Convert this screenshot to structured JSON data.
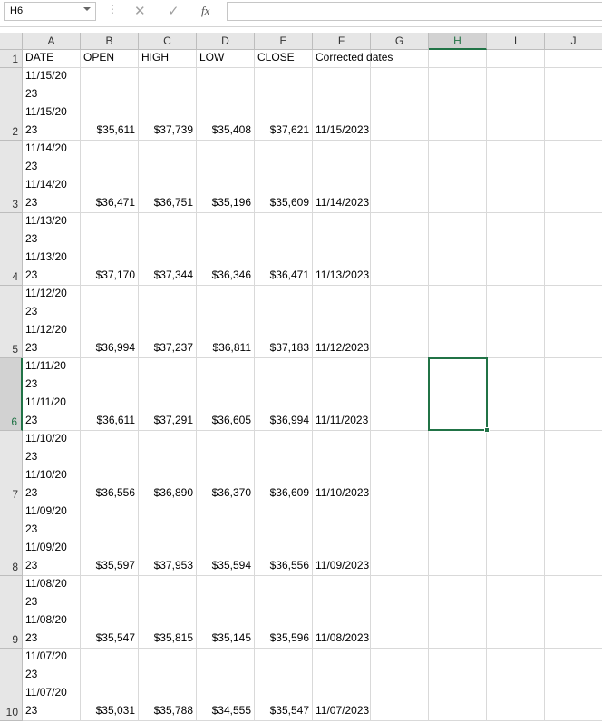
{
  "name_box": "H6",
  "formula_icon": "fx",
  "columns": [
    "A",
    "B",
    "C",
    "D",
    "E",
    "F",
    "G",
    "H",
    "I",
    "J"
  ],
  "rows": [
    {
      "number": "1",
      "cells": [
        "DATE",
        "OPEN",
        "HIGH",
        "LOW",
        "CLOSE",
        "Corrected dates"
      ]
    },
    {
      "number": "2",
      "cells": [
        [
          "11/15/20",
          "23",
          "11/15/20",
          "23"
        ],
        "$35,611",
        "$37,739",
        "$35,408",
        "$37,621",
        "11/15/2023"
      ]
    },
    {
      "number": "3",
      "cells": [
        [
          "11/14/20",
          "23",
          "11/14/20",
          "23"
        ],
        "$36,471",
        "$36,751",
        "$35,196",
        "$35,609",
        "11/14/2023"
      ]
    },
    {
      "number": "4",
      "cells": [
        [
          "11/13/20",
          "23",
          "11/13/20",
          "23"
        ],
        "$37,170",
        "$37,344",
        "$36,346",
        "$36,471",
        "11/13/2023"
      ]
    },
    {
      "number": "5",
      "cells": [
        [
          "11/12/20",
          "23",
          "11/12/20",
          "23"
        ],
        "$36,994",
        "$37,237",
        "$36,811",
        "$37,183",
        "11/12/2023"
      ]
    },
    {
      "number": "6",
      "cells": [
        [
          "11/11/20",
          "23",
          "11/11/20",
          "23"
        ],
        "$36,611",
        "$37,291",
        "$36,605",
        "$36,994",
        "11/11/2023"
      ]
    },
    {
      "number": "7",
      "cells": [
        [
          "11/10/20",
          "23",
          "11/10/20",
          "23"
        ],
        "$36,556",
        "$36,890",
        "$36,370",
        "$36,609",
        "11/10/2023"
      ]
    },
    {
      "number": "8",
      "cells": [
        [
          "11/09/20",
          "23",
          "11/09/20",
          "23"
        ],
        "$35,597",
        "$37,953",
        "$35,594",
        "$36,556",
        "11/09/2023"
      ]
    },
    {
      "number": "9",
      "cells": [
        [
          "11/08/20",
          "23",
          "11/08/20",
          "23"
        ],
        "$35,547",
        "$35,815",
        "$35,145",
        "$35,596",
        "11/08/2023"
      ]
    },
    {
      "number": "10",
      "cells": [
        [
          "11/07/20",
          "23",
          "11/07/20",
          "23"
        ],
        "$35,031",
        "$35,788",
        "$34,555",
        "$35,547",
        "11/07/2023"
      ]
    }
  ]
}
